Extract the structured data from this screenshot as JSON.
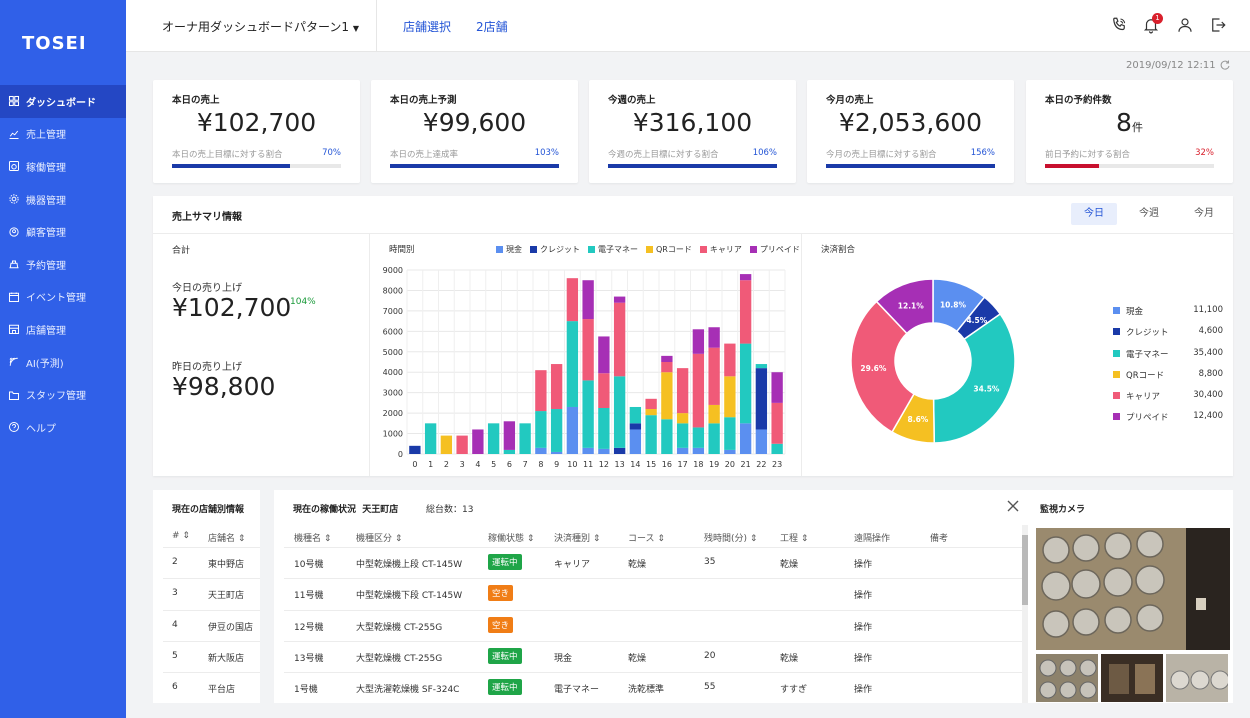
{
  "app": {
    "logo": "TOSEI"
  },
  "sidebar": {
    "items": [
      {
        "label": "ダッシュボード",
        "icon": "dashboard-icon",
        "active": true
      },
      {
        "label": "売上管理",
        "icon": "sales-chart-icon"
      },
      {
        "label": "稼働管理",
        "icon": "operation-icon"
      },
      {
        "label": "機器管理",
        "icon": "gear-icon"
      },
      {
        "label": "顧客管理",
        "icon": "customer-icon"
      },
      {
        "label": "予約管理",
        "icon": "reservation-icon"
      },
      {
        "label": "イベント管理",
        "icon": "calendar-icon"
      },
      {
        "label": "店舗管理",
        "icon": "store-icon"
      },
      {
        "label": "AI(予測)",
        "icon": "ai-icon"
      },
      {
        "label": "スタッフ管理",
        "icon": "folder-icon"
      },
      {
        "label": "ヘルプ",
        "icon": "help-icon"
      }
    ]
  },
  "topbar": {
    "dashboard_pattern": "オーナ用ダッシュボードパターン1",
    "store_select": "店舗選択",
    "store_count": "2店舗",
    "notification_count": "1"
  },
  "datetime": "2019/09/12 12:11",
  "kpis": [
    {
      "title": "本日の売上",
      "value": "¥102,700",
      "unit": "",
      "sub": "本日の売上目標に対する割合",
      "pct": "70%",
      "ratio": 0.7,
      "color": "#1a3aa8",
      "pct_color": "#2455d6"
    },
    {
      "title": "本日の売上予測",
      "value": "¥99,600",
      "unit": "",
      "sub": "本日の売上達成率",
      "pct": "103%",
      "ratio": 1.0,
      "color": "#1a3aa8",
      "pct_color": "#2455d6"
    },
    {
      "title": "今週の売上",
      "value": "¥316,100",
      "unit": "",
      "sub": "今週の売上目標に対する割合",
      "pct": "106%",
      "ratio": 1.0,
      "color": "#1a3aa8",
      "pct_color": "#2455d6"
    },
    {
      "title": "今月の売上",
      "value": "¥2,053,600",
      "unit": "",
      "sub": "今月の売上目標に対する割合",
      "pct": "156%",
      "ratio": 1.0,
      "color": "#1a3aa8",
      "pct_color": "#2455d6"
    },
    {
      "title": "本日の予約件数",
      "value": "8",
      "unit": "件",
      "sub": "前日予約に対する割合",
      "pct": "32%",
      "ratio": 0.32,
      "color": "#c8102e",
      "pct_color": "#d9202c"
    }
  ],
  "summary": {
    "title": "売上サマリ情報",
    "tabs": [
      "今日",
      "今週",
      "今月"
    ],
    "total_label": "合計",
    "today_label": "今日の売り上げ",
    "today_value": "¥102,700",
    "today_pct": "104%",
    "yesterday_label": "昨日の売り上げ",
    "yesterday_value": "¥98,800",
    "hourly_label": "時間別",
    "payment_label": "決済割合"
  },
  "chart_data": [
    {
      "type": "bar",
      "stacked": true,
      "title": "時間別",
      "categories": [
        "0",
        "1",
        "2",
        "3",
        "4",
        "5",
        "6",
        "7",
        "8",
        "9",
        "10",
        "11",
        "12",
        "13",
        "14",
        "15",
        "16",
        "17",
        "18",
        "19",
        "20",
        "21",
        "22",
        "23"
      ],
      "ylim": [
        0,
        9000
      ],
      "yticks": [
        "0",
        "1000",
        "2000",
        "3000",
        "4000",
        "5000",
        "6000",
        "7000",
        "8000",
        "9000"
      ],
      "grid": true,
      "legend": "top",
      "series": [
        {
          "name": "現金",
          "color": "#5b8ff0",
          "values": [
            0,
            0,
            0,
            0,
            0,
            0,
            0,
            0,
            300,
            100,
            2300,
            300,
            250,
            0,
            1200,
            0,
            0,
            300,
            300,
            0,
            200,
            1500,
            1200,
            0
          ]
        },
        {
          "name": "クレジット",
          "color": "#1a3aa8",
          "values": [
            400,
            0,
            0,
            0,
            0,
            0,
            0,
            0,
            0,
            0,
            0,
            0,
            0,
            300,
            300,
            0,
            0,
            0,
            0,
            0,
            0,
            0,
            3000,
            0
          ]
        },
        {
          "name": "電子マネー",
          "color": "#22c9c0",
          "values": [
            0,
            1500,
            0,
            0,
            0,
            1500,
            200,
            1500,
            1800,
            2100,
            4200,
            3300,
            2000,
            3500,
            800,
            1900,
            1700,
            1200,
            1000,
            1500,
            1600,
            3900,
            200,
            500
          ]
        },
        {
          "name": "QRコード",
          "color": "#f5c022",
          "values": [
            0,
            0,
            900,
            0,
            0,
            0,
            0,
            0,
            0,
            0,
            0,
            0,
            0,
            0,
            0,
            300,
            2300,
            500,
            0,
            900,
            2000,
            0,
            0,
            0
          ]
        },
        {
          "name": "キャリア",
          "color": "#f05a78",
          "values": [
            0,
            0,
            0,
            900,
            0,
            0,
            0,
            0,
            2000,
            2200,
            2100,
            3000,
            1700,
            3600,
            0,
            500,
            500,
            2200,
            3600,
            2800,
            1600,
            3100,
            0,
            2000
          ]
        },
        {
          "name": "プリペイド",
          "color": "#a62fb5",
          "values": [
            0,
            0,
            0,
            0,
            1200,
            0,
            1400,
            0,
            0,
            0,
            0,
            1900,
            1800,
            300,
            0,
            0,
            300,
            0,
            1200,
            1000,
            0,
            300,
            0,
            1500
          ]
        }
      ]
    },
    {
      "type": "pie",
      "title": "決済割合",
      "donut": true,
      "slices": [
        {
          "name": "現金",
          "value": 11100,
          "pct_label": "10.8%",
          "color": "#5b8ff0"
        },
        {
          "name": "クレジット",
          "value": 4600,
          "pct_label": "4.5%",
          "color": "#1a3aa8"
        },
        {
          "name": "電子マネー",
          "value": 35400,
          "pct_label": "34.5%",
          "color": "#22c9c0"
        },
        {
          "name": "QRコード",
          "value": 8800,
          "pct_label": "8.6%",
          "color": "#f5c022"
        },
        {
          "name": "キャリア",
          "value": 30400,
          "pct_label": "29.6%",
          "color": "#f05a78"
        },
        {
          "name": "プリペイド",
          "value": 12400,
          "pct_label": "12.1%",
          "color": "#a62fb5"
        }
      ],
      "legend_values": [
        "11,100",
        "4,600",
        "35,400",
        "8,800",
        "30,400",
        "12,400"
      ]
    }
  ],
  "store_panel": {
    "title": "現在の店舗別情報",
    "headers": [
      "#",
      "店舗名"
    ],
    "rows": [
      {
        "no": "2",
        "name": "東中野店"
      },
      {
        "no": "3",
        "name": "天王町店"
      },
      {
        "no": "4",
        "name": "伊豆の国店"
      },
      {
        "no": "5",
        "name": "新大阪店"
      },
      {
        "no": "6",
        "name": "平台店"
      }
    ]
  },
  "status_panel": {
    "title": "現在の稼働状況",
    "store": "天王町店",
    "total": "総台数：13",
    "headers": [
      "機種名",
      "機種区分",
      "稼働状態",
      "決済種別",
      "コース",
      "残時間(分)",
      "工程",
      "遠隔操作",
      "備考"
    ],
    "rows": [
      {
        "machine": "10号機",
        "type": "中型乾燥機上段 CT-145W",
        "status": "運転中",
        "status_kind": "run",
        "payment": "キャリア",
        "course": "乾燥",
        "remaining": "35",
        "process": "乾燥",
        "op": "操作"
      },
      {
        "machine": "11号機",
        "type": "中型乾燥機下段 CT-145W",
        "status": "空き",
        "status_kind": "free",
        "payment": "",
        "course": "",
        "remaining": "",
        "process": "",
        "op": "操作"
      },
      {
        "machine": "12号機",
        "type": "大型乾燥機 CT-255G",
        "status": "空き",
        "status_kind": "free",
        "payment": "",
        "course": "",
        "remaining": "",
        "process": "",
        "op": "操作"
      },
      {
        "machine": "13号機",
        "type": "大型乾燥機 CT-255G",
        "status": "運転中",
        "status_kind": "run",
        "payment": "現金",
        "course": "乾燥",
        "remaining": "20",
        "process": "乾燥",
        "op": "操作"
      },
      {
        "machine": "1号機",
        "type": "大型洗濯乾燥機 SF-324C",
        "status": "運転中",
        "status_kind": "run",
        "payment": "電子マネー",
        "course": "洗乾標準",
        "remaining": "55",
        "process": "すすぎ",
        "op": "操作"
      }
    ]
  },
  "camera_panel": {
    "title": "監視カメラ"
  }
}
